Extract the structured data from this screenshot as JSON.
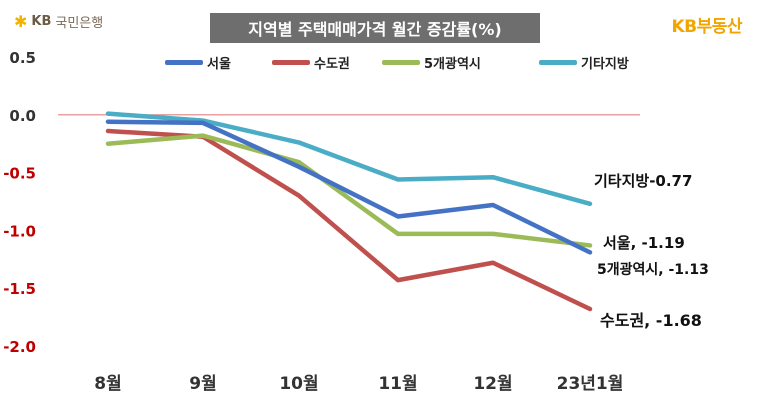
{
  "brand": {
    "left_logo_text": "KB국민은행",
    "left_logo_kb": "KB",
    "left_logo_rest": "국민은행",
    "right_logo_text": "KB부동산",
    "right_logo_kb": "KB",
    "right_logo_rest": "부동산"
  },
  "chart_data": {
    "type": "line",
    "title": "지역별 주택매매가격 월간 증감률(%)",
    "xlabel": "",
    "ylabel": "",
    "categories": [
      "8월",
      "9월",
      "10월",
      "11월",
      "12월",
      "23년1월"
    ],
    "ylim": [
      -2.0,
      0.5
    ],
    "yticks": [
      "0.5",
      "0.0",
      "-0.5",
      "-1.0",
      "-1.5",
      "-2.0"
    ],
    "ytick_values": [
      0.5,
      0.0,
      -0.5,
      -1.0,
      -1.5,
      -2.0
    ],
    "zero_line_color": "#e08080",
    "legend_position": "top",
    "grid": false,
    "series": [
      {
        "name": "서울",
        "color": "#4472c4",
        "values": [
          -0.06,
          -0.07,
          -0.45,
          -0.88,
          -0.78,
          -1.19
        ]
      },
      {
        "name": "수도권",
        "color": "#c0504d",
        "values": [
          -0.14,
          -0.19,
          -0.7,
          -1.43,
          -1.28,
          -1.68
        ]
      },
      {
        "name": "5개광역시",
        "color": "#9bbb59",
        "values": [
          -0.25,
          -0.18,
          -0.41,
          -1.03,
          -1.03,
          -1.13
        ]
      },
      {
        "name": "기타지방",
        "color": "#4bacc6",
        "values": [
          0.01,
          -0.05,
          -0.24,
          -0.56,
          -0.54,
          -0.77
        ]
      }
    ],
    "annotations": [
      {
        "series": "기타지방",
        "text": "기타지방-0.77"
      },
      {
        "series": "서울",
        "text": "서울, -1.19"
      },
      {
        "series": "5개광역시",
        "text": "5개광역시, -1.13"
      },
      {
        "series": "수도권",
        "text": "수도권, -1.68"
      }
    ]
  }
}
